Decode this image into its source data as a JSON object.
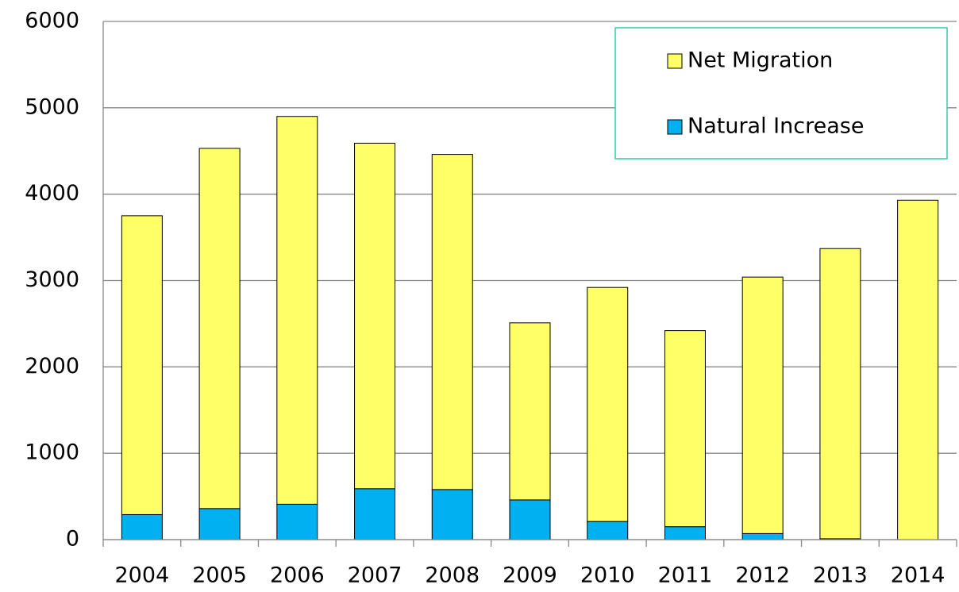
{
  "chart_data": {
    "type": "stacked-bar",
    "categories": [
      "2004",
      "2005",
      "2006",
      "2007",
      "2008",
      "2009",
      "2010",
      "2011",
      "2012",
      "2013",
      "2014"
    ],
    "series": [
      {
        "name": "Natural Increase",
        "color": "#00b0f0",
        "values": [
          290,
          360,
          410,
          590,
          580,
          460,
          210,
          150,
          70,
          10,
          0
        ]
      },
      {
        "name": "Net Migration",
        "color": "#ffff66",
        "values": [
          3460,
          4170,
          4490,
          4000,
          3880,
          2050,
          2710,
          2270,
          2970,
          3360,
          3930
        ]
      }
    ],
    "ylim": [
      0,
      6000
    ],
    "yticks": [
      0,
      1000,
      2000,
      3000,
      4000,
      5000,
      6000
    ],
    "grid": true,
    "legend": "top-right"
  }
}
